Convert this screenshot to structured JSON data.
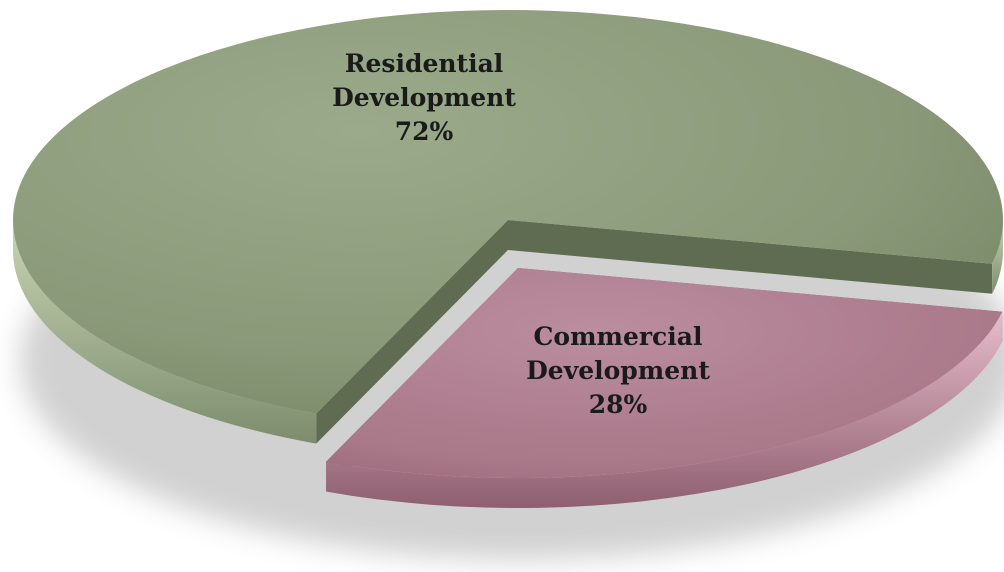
{
  "chart_data": {
    "type": "pie",
    "title": "",
    "slices": [
      {
        "label_lines": [
          "Residential",
          "Development"
        ],
        "value": 72,
        "value_label": "72%",
        "color": "#8e9e7e"
      },
      {
        "label_lines": [
          "Commercial",
          "Development"
        ],
        "value": 28,
        "value_label": "28%",
        "color": "#b07f92"
      }
    ],
    "exploded_slice": "Commercial Development",
    "style": "3d-exploded",
    "legend": "none"
  }
}
